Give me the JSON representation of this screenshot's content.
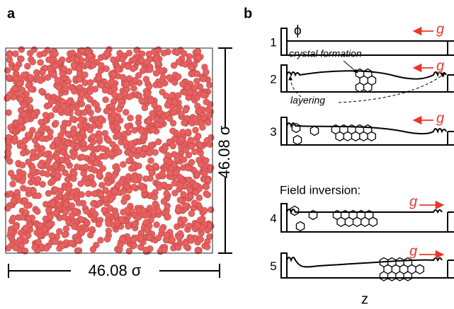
{
  "panel_a": {
    "label": "a",
    "width_label": "46.08 σ",
    "height_label": "46.08 σ"
  },
  "panel_b": {
    "label": "b",
    "phi": "ϕ",
    "rows": [
      {
        "number": "1",
        "g": "g"
      },
      {
        "number": "2",
        "g": "g"
      },
      {
        "number": "3",
        "g": "g"
      },
      {
        "number": "4",
        "g": "g"
      },
      {
        "number": "5",
        "g": "g"
      }
    ],
    "crystal": "crystal formation",
    "layering": "layering",
    "inversion": "Field inversion:",
    "axis": "z"
  }
}
